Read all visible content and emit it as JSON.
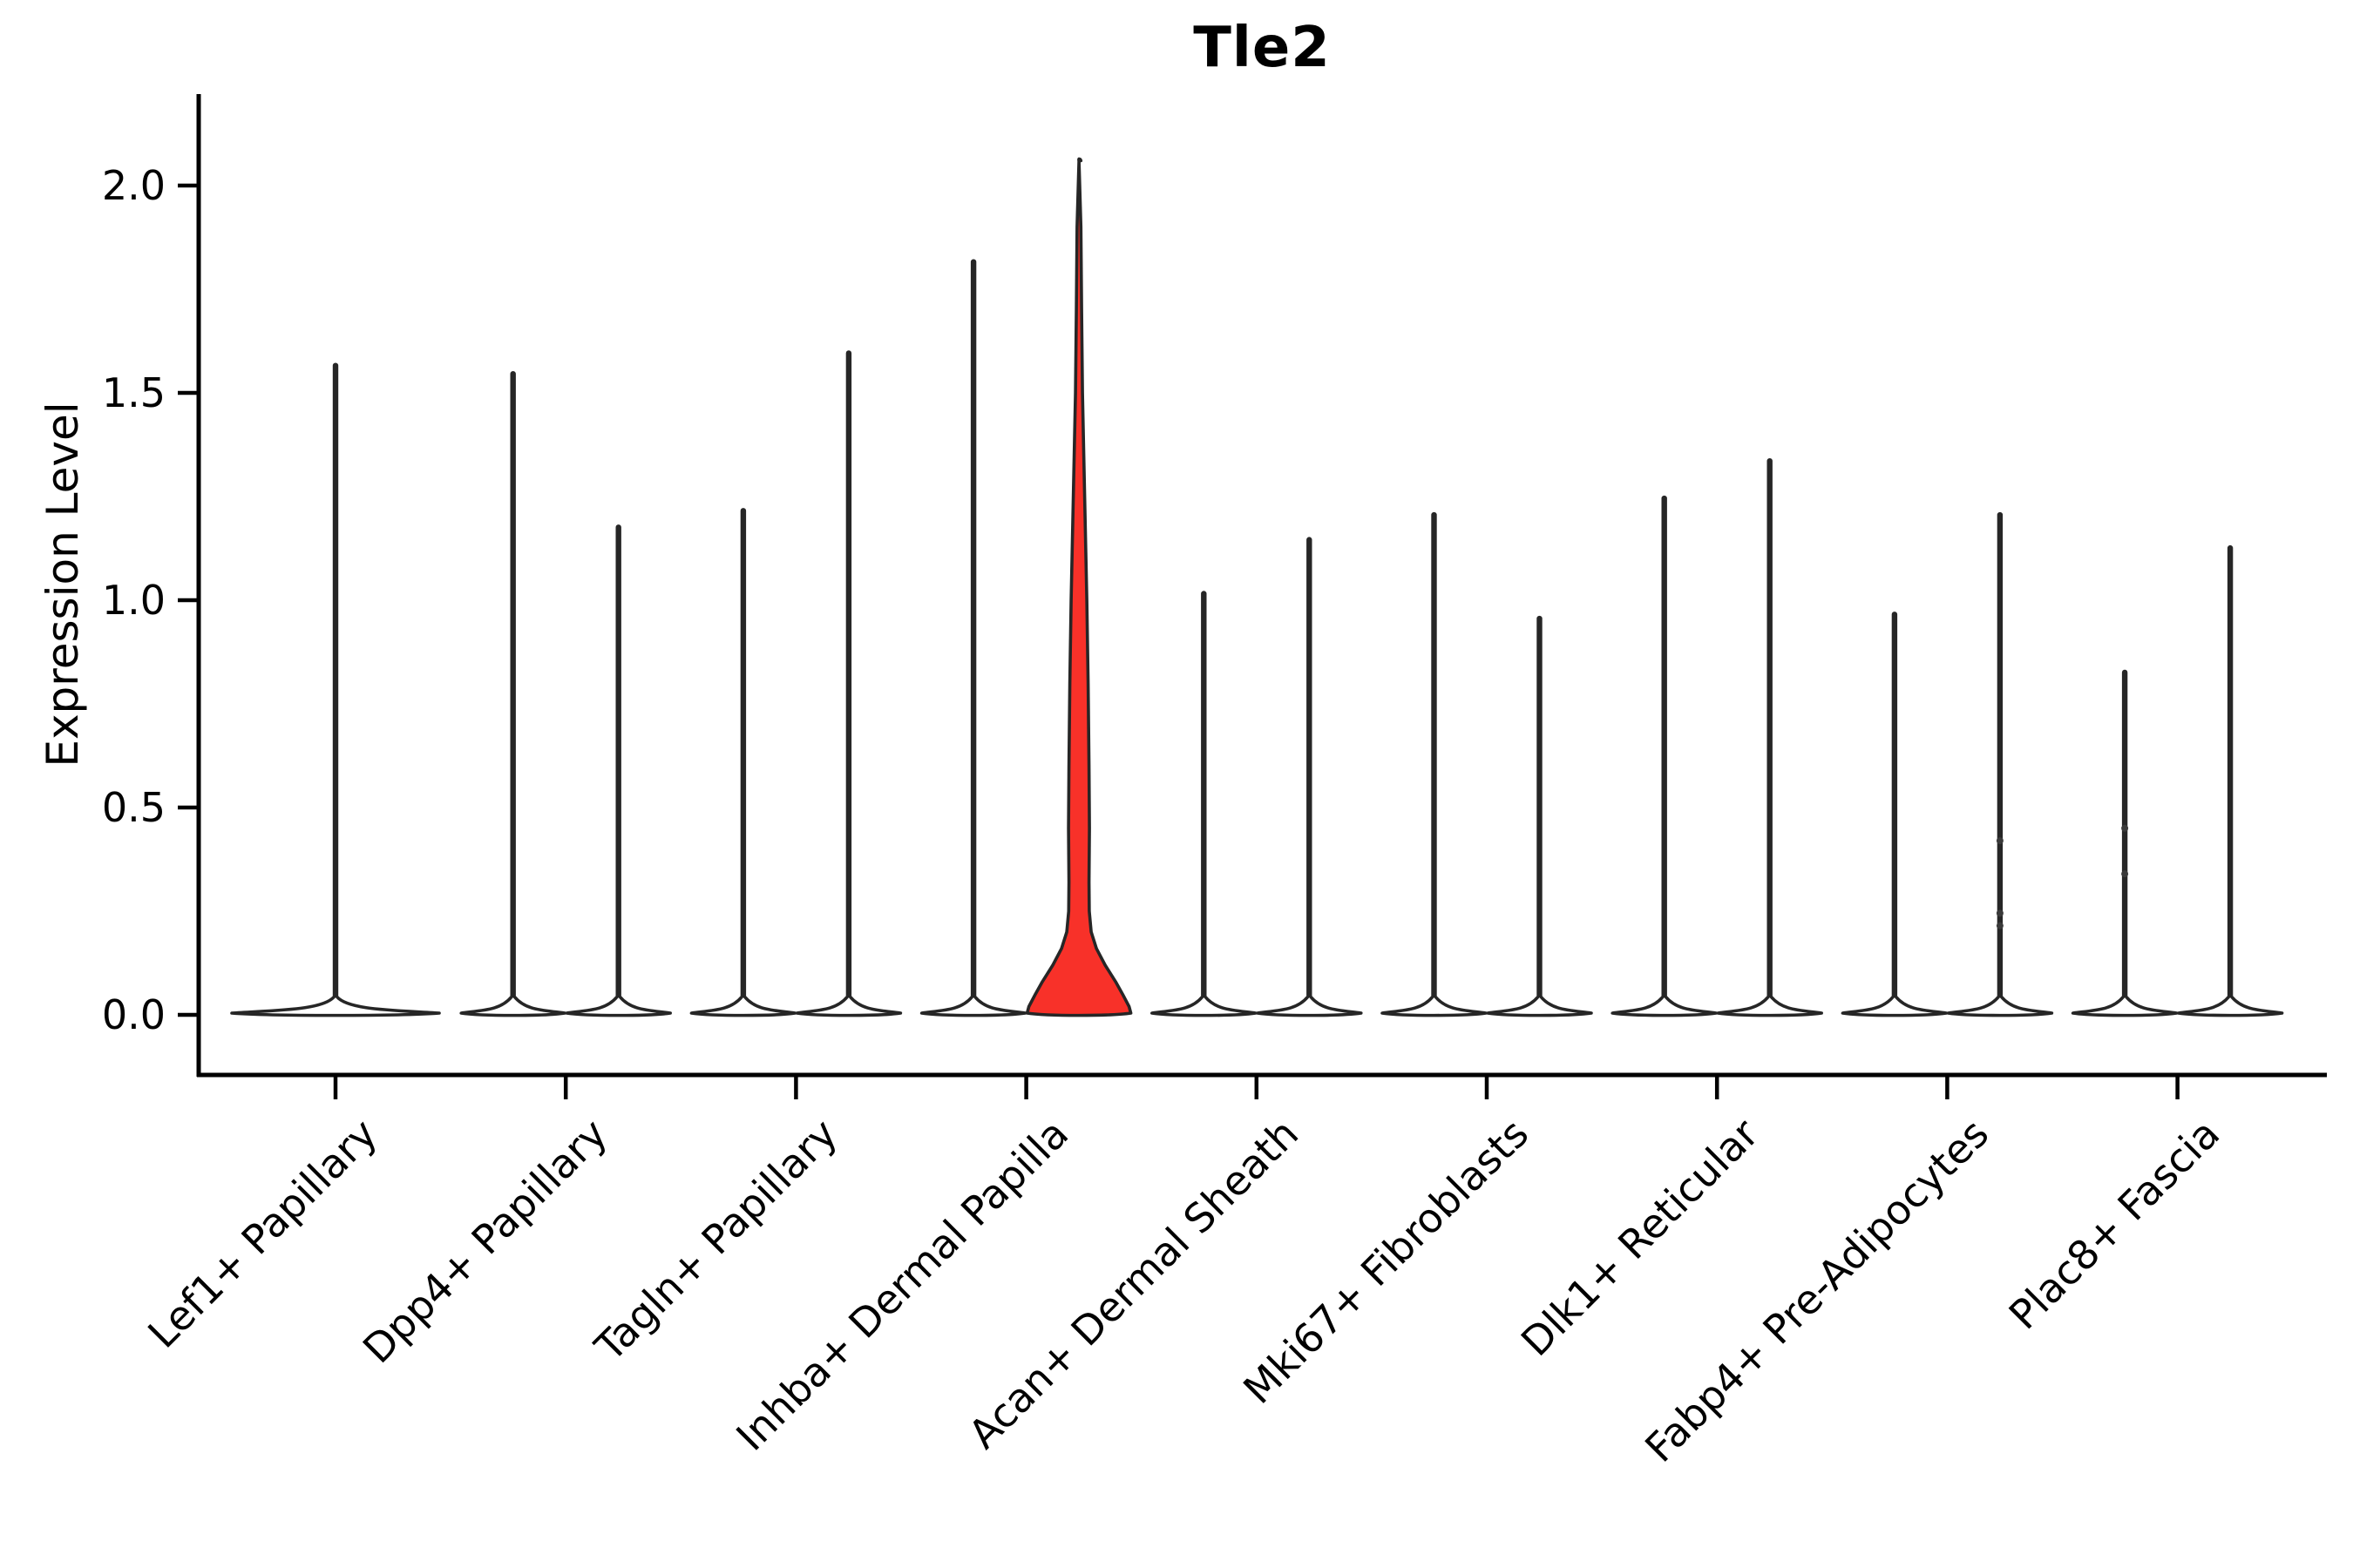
{
  "chart_data": {
    "type": "violin",
    "title": "Tle2",
    "ylabel": "Expression Level",
    "yticks": [
      {
        "value": 2.0,
        "label": "2.0"
      },
      {
        "value": 1.5,
        "label": "1.5"
      },
      {
        "value": 1.0,
        "label": "1.0"
      },
      {
        "value": 0.5,
        "label": "0.5"
      },
      {
        "value": 0.0,
        "label": "0.0"
      }
    ],
    "ylim": [
      0,
      2.1
    ],
    "x_tick_rotation": 45,
    "legend": "none",
    "colors": {
      "edge": "#262626",
      "default_fill": "#ffffff",
      "highlight_fill": "#f83129",
      "axis": "#000000",
      "dot": "#3a3a3a"
    },
    "groups": [
      {
        "label": "Lef1+ Papillary",
        "violins": [
          {
            "max": 1.57,
            "span": "full",
            "highlight": false
          }
        ]
      },
      {
        "label": "Dpp4+ Papillary",
        "violins": [
          {
            "max": 1.55,
            "highlight": false
          },
          {
            "max": 1.18,
            "highlight": false
          }
        ]
      },
      {
        "label": "Tagln+ Papillary",
        "violins": [
          {
            "max": 1.22,
            "highlight": false
          },
          {
            "max": 1.6,
            "highlight": false
          }
        ]
      },
      {
        "label": "Inhba+ Dermal Papilla",
        "violins": [
          {
            "max": 1.82,
            "highlight": false
          },
          {
            "max": 2.06,
            "highlight": true,
            "profile": [
              [
                2.06,
                0
              ],
              [
                1.9,
                2.2
              ],
              [
                1.7,
                3
              ],
              [
                1.5,
                4
              ],
              [
                1.35,
                5.5
              ],
              [
                1.2,
                7
              ],
              [
                1.0,
                9
              ],
              [
                0.8,
                10.5
              ],
              [
                0.6,
                11.5
              ],
              [
                0.45,
                12
              ],
              [
                0.32,
                11.5
              ],
              [
                0.25,
                11.8
              ],
              [
                0.2,
                14
              ],
              [
                0.16,
                20
              ],
              [
                0.12,
                30
              ],
              [
                0.08,
                42
              ],
              [
                0.05,
                50
              ],
              [
                0.02,
                57.5
              ]
            ]
          }
        ]
      },
      {
        "label": "Acan+ Dermal Sheath",
        "violins": [
          {
            "max": 1.02,
            "highlight": false
          },
          {
            "max": 1.15,
            "highlight": false
          }
        ]
      },
      {
        "label": "Mki67+ Fibroblasts",
        "violins": [
          {
            "max": 1.21,
            "highlight": false
          },
          {
            "max": 0.96,
            "highlight": false
          }
        ]
      },
      {
        "label": "Dlk1+ Reticular",
        "violins": [
          {
            "max": 1.25,
            "highlight": false
          },
          {
            "max": 1.34,
            "highlight": false
          }
        ]
      },
      {
        "label": "Fabp4+ Pre-Adipocytes",
        "violins": [
          {
            "max": 0.97,
            "highlight": false
          },
          {
            "max": 1.21,
            "highlight": false,
            "dots": [
              0.42,
              0.245,
              0.215
            ]
          }
        ]
      },
      {
        "label": "Plac8+ Fascia",
        "violins": [
          {
            "max": 0.83,
            "highlight": false,
            "dots": [
              0.45,
              0.34
            ]
          },
          {
            "max": 1.13,
            "highlight": false
          }
        ]
      }
    ]
  }
}
